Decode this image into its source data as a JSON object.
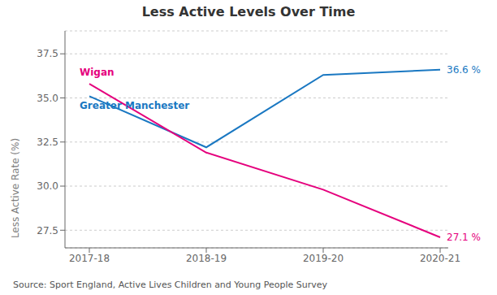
{
  "chart_data": {
    "type": "line",
    "title": "Less Active Levels Over Time",
    "y_label": "Less Active Rate (%)",
    "categories": [
      "2017-18",
      "2018-19",
      "2019-20",
      "2020-21"
    ],
    "series": [
      {
        "name": "Greater Manchester",
        "color": "#1A78C2",
        "values": [
          35.1,
          32.2,
          36.3,
          36.6
        ]
      },
      {
        "name": "Wigan",
        "color": "#E5007D",
        "values": [
          35.8,
          31.9,
          29.8,
          27.1
        ]
      }
    ],
    "ylim": [
      26.5,
      38.8
    ],
    "yticks": [
      27.5,
      {
        "value": 30,
        "label": "30.0"
      },
      32.5,
      {
        "value": 35,
        "label": "35.0"
      },
      37.5
    ],
    "grid": true,
    "annotations": [
      {
        "text": "36.6 %",
        "series": "Greater Manchester"
      },
      {
        "text": "27.1 %",
        "series": "Wigan"
      }
    ],
    "footnote": "Source: Sport England, Active Lives Children and Young People Survey"
  }
}
